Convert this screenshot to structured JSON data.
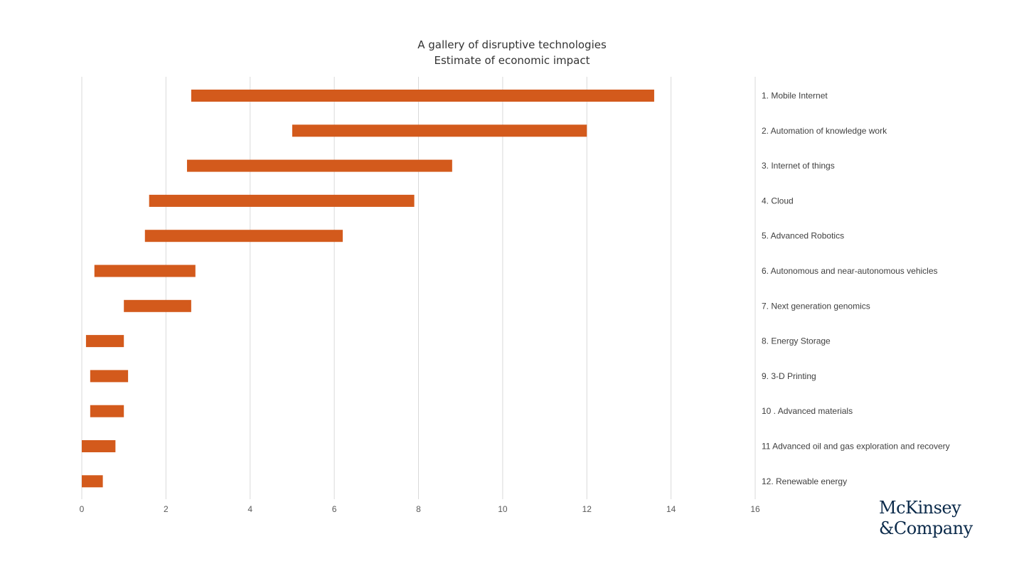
{
  "chart_data": {
    "type": "bar",
    "orientation": "horizontal-floating",
    "title": "A gallery of disruptive technologies",
    "subtitle": "Estimate of economic impact",
    "categories": [
      "1. Mobile Internet",
      "2. Automation of knowledge work",
      "3. Internet of things",
      "4. Cloud",
      "5. Advanced Robotics",
      "6. Autonomous and near-autonomous vehicles",
      "7. Next generation genomics",
      "8. Energy Storage",
      "9. 3-D Printing",
      "10 . Advanced materials",
      "11 Advanced oil and gas exploration and recovery",
      "12. Renewable energy"
    ],
    "ranges": [
      [
        2.6,
        13.6
      ],
      [
        5.0,
        12.0
      ],
      [
        2.5,
        8.8
      ],
      [
        1.6,
        7.9
      ],
      [
        1.5,
        6.2
      ],
      [
        0.3,
        2.7
      ],
      [
        1.0,
        2.6
      ],
      [
        0.1,
        1.0
      ],
      [
        0.2,
        1.1
      ],
      [
        0.2,
        1.0
      ],
      [
        0.0,
        0.8
      ],
      [
        0.0,
        0.5
      ]
    ],
    "xlim": [
      0,
      16
    ],
    "xticks": [
      "0",
      "2",
      "4",
      "6",
      "8",
      "10",
      "12",
      "14",
      "16"
    ],
    "grid": "vertical",
    "category_labels_position": "right",
    "bar_color": "#D35A1C",
    "grid_color": "#D9D9D9"
  },
  "logo": {
    "line1": "McKinsey",
    "line2": "&Company",
    "color": "#0B2A4A"
  }
}
